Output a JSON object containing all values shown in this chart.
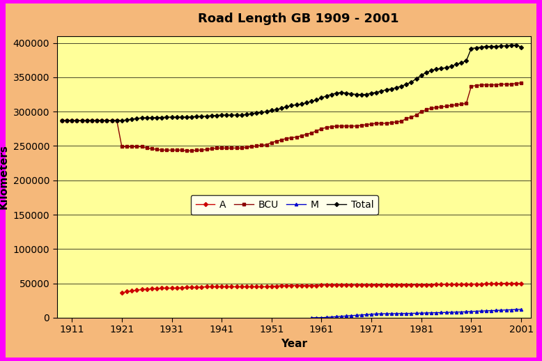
{
  "title": "Road Length GB 1909 - 2001",
  "xlabel": "Year",
  "ylabel": "Kilometers",
  "figure_background": "#F5B87A",
  "plot_background": "#FFFF99",
  "border_color": "#FF00FF",
  "border_width": 6,
  "xlim": [
    1908,
    2003
  ],
  "ylim": [
    0,
    410000
  ],
  "xticks": [
    1911,
    1921,
    1931,
    1941,
    1951,
    1961,
    1971,
    1981,
    1991,
    2001
  ],
  "yticks": [
    0,
    50000,
    100000,
    150000,
    200000,
    250000,
    300000,
    350000,
    400000
  ],
  "title_fontsize": 13,
  "axis_label_fontsize": 11,
  "tick_fontsize": 10,
  "A": {
    "color": "#CC0000",
    "marker": "D",
    "markersize": 3,
    "years": [
      1921,
      1922,
      1923,
      1924,
      1925,
      1926,
      1927,
      1928,
      1929,
      1930,
      1931,
      1932,
      1933,
      1934,
      1935,
      1936,
      1937,
      1938,
      1939,
      1940,
      1941,
      1942,
      1943,
      1944,
      1945,
      1946,
      1947,
      1948,
      1949,
      1950,
      1951,
      1952,
      1953,
      1954,
      1955,
      1956,
      1957,
      1958,
      1959,
      1960,
      1961,
      1962,
      1963,
      1964,
      1965,
      1966,
      1967,
      1968,
      1969,
      1970,
      1971,
      1972,
      1973,
      1974,
      1975,
      1976,
      1977,
      1978,
      1979,
      1980,
      1981,
      1982,
      1983,
      1984,
      1985,
      1986,
      1987,
      1988,
      1989,
      1990,
      1991,
      1992,
      1993,
      1994,
      1995,
      1996,
      1997,
      1998,
      1999,
      2000,
      2001
    ],
    "values": [
      36000,
      38000,
      39000,
      40000,
      41000,
      41500,
      42000,
      42500,
      43000,
      43000,
      43000,
      43000,
      43500,
      44000,
      44000,
      44000,
      44500,
      45000,
      45000,
      45000,
      45000,
      45000,
      45000,
      45000,
      45000,
      45000,
      45000,
      45000,
      45000,
      45000,
      46000,
      46000,
      46500,
      46500,
      47000,
      47000,
      47000,
      47000,
      47000,
      47000,
      47500,
      47500,
      47500,
      47500,
      47500,
      47500,
      47500,
      47500,
      47500,
      47500,
      47500,
      48000,
      48000,
      48000,
      48000,
      48000,
      48000,
      48000,
      48000,
      48000,
      48000,
      48000,
      48000,
      48500,
      48500,
      48500,
      48500,
      48500,
      49000,
      49000,
      49000,
      49000,
      49000,
      49500,
      49500,
      49500,
      50000,
      50000,
      50000,
      50000,
      49500
    ]
  },
  "BCU": {
    "color": "#8B0000",
    "marker": "s",
    "markersize": 3,
    "years": [
      1909,
      1910,
      1911,
      1912,
      1913,
      1914,
      1915,
      1916,
      1917,
      1918,
      1919,
      1920,
      1921,
      1922,
      1923,
      1924,
      1925,
      1926,
      1927,
      1928,
      1929,
      1930,
      1931,
      1932,
      1933,
      1934,
      1935,
      1936,
      1937,
      1938,
      1939,
      1940,
      1941,
      1942,
      1943,
      1944,
      1945,
      1946,
      1947,
      1948,
      1949,
      1950,
      1951,
      1952,
      1953,
      1954,
      1955,
      1956,
      1957,
      1958,
      1959,
      1960,
      1961,
      1962,
      1963,
      1964,
      1965,
      1966,
      1967,
      1968,
      1969,
      1970,
      1971,
      1972,
      1973,
      1974,
      1975,
      1976,
      1977,
      1978,
      1979,
      1980,
      1981,
      1982,
      1983,
      1984,
      1985,
      1986,
      1987,
      1988,
      1989,
      1990,
      1991,
      1992,
      1993,
      1994,
      1995,
      1996,
      1997,
      1998,
      1999,
      2000,
      2001
    ],
    "values": [
      287000,
      287000,
      287000,
      287000,
      287000,
      287000,
      287000,
      287000,
      287000,
      287000,
      287000,
      287000,
      249000,
      249000,
      249000,
      249000,
      249000,
      247000,
      246000,
      245000,
      244000,
      244000,
      244000,
      244000,
      244000,
      243000,
      243000,
      244000,
      244000,
      245000,
      246000,
      247000,
      247000,
      247000,
      247000,
      247000,
      247000,
      248000,
      249000,
      250000,
      251000,
      252000,
      255000,
      257000,
      259000,
      261000,
      262000,
      263000,
      265000,
      267000,
      269000,
      272000,
      275000,
      277000,
      278000,
      279000,
      279000,
      279000,
      279000,
      279000,
      280000,
      281000,
      282000,
      283000,
      283000,
      283000,
      284000,
      285000,
      286000,
      290000,
      292000,
      295000,
      300000,
      303000,
      305000,
      306000,
      307000,
      308000,
      309000,
      310000,
      311000,
      312000,
      337000,
      338000,
      339000,
      339000,
      339000,
      339000,
      340000,
      340000,
      340000,
      341000,
      342000
    ]
  },
  "M": {
    "color": "#0000CC",
    "marker": "^",
    "markersize": 3,
    "years": [
      1959,
      1960,
      1961,
      1962,
      1963,
      1964,
      1965,
      1966,
      1967,
      1968,
      1969,
      1970,
      1971,
      1972,
      1973,
      1974,
      1975,
      1976,
      1977,
      1978,
      1979,
      1980,
      1981,
      1982,
      1983,
      1984,
      1985,
      1986,
      1987,
      1988,
      1989,
      1990,
      1991,
      1992,
      1993,
      1994,
      1995,
      1996,
      1997,
      1998,
      1999,
      2000,
      2001
    ],
    "values": [
      0,
      0,
      0,
      500,
      1000,
      1500,
      2000,
      2500,
      3000,
      3500,
      4000,
      4500,
      5000,
      5500,
      5700,
      5800,
      5900,
      6000,
      6100,
      6200,
      6300,
      6500,
      6700,
      6900,
      7100,
      7300,
      7500,
      7700,
      7900,
      8100,
      8300,
      8600,
      9000,
      9400,
      9700,
      10000,
      10300,
      10600,
      10900,
      11200,
      11500,
      12000,
      12000
    ]
  },
  "Total": {
    "color": "#000000",
    "marker": "D",
    "markersize": 3,
    "years": [
      1909,
      1910,
      1911,
      1912,
      1913,
      1914,
      1915,
      1916,
      1917,
      1918,
      1919,
      1920,
      1921,
      1922,
      1923,
      1924,
      1925,
      1926,
      1927,
      1928,
      1929,
      1930,
      1931,
      1932,
      1933,
      1934,
      1935,
      1936,
      1937,
      1938,
      1939,
      1940,
      1941,
      1942,
      1943,
      1944,
      1945,
      1946,
      1947,
      1948,
      1949,
      1950,
      1951,
      1952,
      1953,
      1954,
      1955,
      1956,
      1957,
      1958,
      1959,
      1960,
      1961,
      1962,
      1963,
      1964,
      1965,
      1966,
      1967,
      1968,
      1969,
      1970,
      1971,
      1972,
      1973,
      1974,
      1975,
      1976,
      1977,
      1978,
      1979,
      1980,
      1981,
      1982,
      1983,
      1984,
      1985,
      1986,
      1987,
      1988,
      1989,
      1990,
      1991,
      1992,
      1993,
      1994,
      1995,
      1996,
      1997,
      1998,
      1999,
      2000,
      2001
    ],
    "values": [
      287000,
      287000,
      287000,
      287000,
      287000,
      287000,
      287000,
      287000,
      287000,
      287000,
      287000,
      287000,
      287000,
      288000,
      289000,
      290000,
      291000,
      291000,
      291000,
      291500,
      291500,
      292000,
      292000,
      292000,
      292000,
      292000,
      292500,
      293000,
      293000,
      293500,
      294000,
      294500,
      295000,
      295000,
      295000,
      295000,
      295000,
      296000,
      297000,
      298000,
      299000,
      300000,
      302000,
      303000,
      305000,
      307000,
      309000,
      310000,
      311000,
      313000,
      315000,
      317000,
      320000,
      323000,
      325000,
      327000,
      328000,
      327000,
      326000,
      325000,
      325000,
      325000,
      327000,
      328000,
      330000,
      332000,
      333000,
      335000,
      337000,
      340000,
      343000,
      348000,
      353000,
      357000,
      360000,
      362000,
      363000,
      364000,
      366000,
      369000,
      371000,
      374000,
      392000,
      393000,
      394000,
      395000,
      395000,
      395000,
      395500,
      396000,
      396500,
      397000,
      394000
    ]
  }
}
